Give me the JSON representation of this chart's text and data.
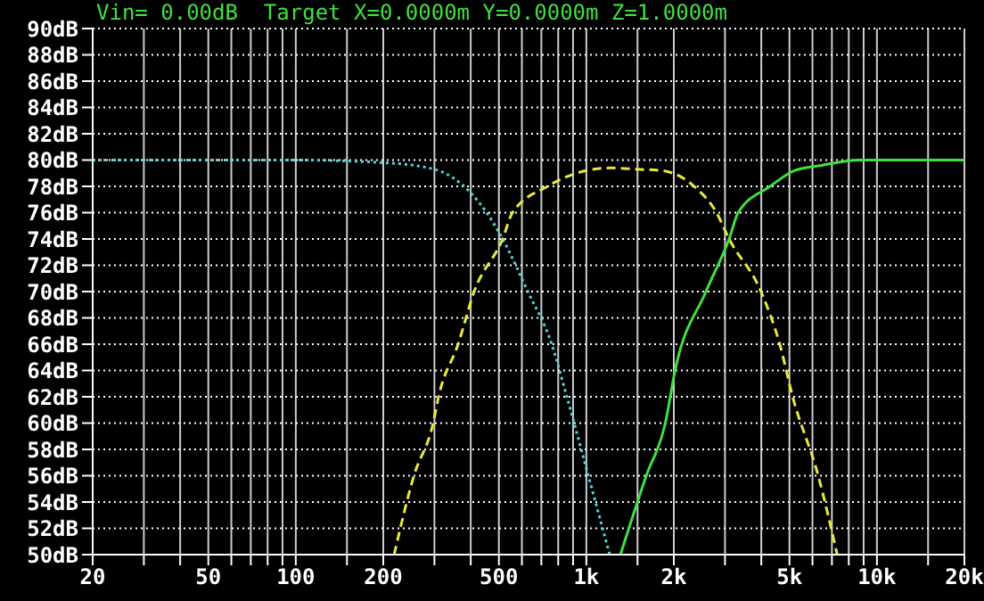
{
  "chart_data": {
    "type": "line",
    "title": "Vin= 0.00dB  Target X=0.0000m Y=0.0000m Z=1.0000m",
    "log": "x",
    "grid": true,
    "marker": "none",
    "xlim": [
      20,
      20000
    ],
    "xticks": [
      20,
      {
        "value": 30,
        "label": null
      },
      {
        "value": 40,
        "label": null
      },
      50,
      {
        "value": 60,
        "label": null
      },
      {
        "value": 70,
        "label": null
      },
      {
        "value": 80,
        "label": null
      },
      {
        "value": 90,
        "label": null
      },
      100,
      {
        "value": 150,
        "label": null
      },
      200,
      {
        "value": 300,
        "label": null
      },
      {
        "value": 400,
        "label": null
      },
      500,
      {
        "value": 600,
        "label": null
      },
      {
        "value": 700,
        "label": null
      },
      {
        "value": 800,
        "label": null
      },
      {
        "value": 900,
        "label": null
      },
      {
        "value": 1000,
        "label": "1k"
      },
      {
        "value": 1500,
        "label": null
      },
      {
        "value": 2000,
        "label": "2k"
      },
      {
        "value": 3000,
        "label": null
      },
      {
        "value": 4000,
        "label": null
      },
      {
        "value": 5000,
        "label": "5k"
      },
      {
        "value": 6000,
        "label": null
      },
      {
        "value": 7000,
        "label": null
      },
      {
        "value": 8000,
        "label": null
      },
      {
        "value": 9000,
        "label": null
      },
      {
        "value": 10000,
        "label": "10k"
      },
      {
        "value": 15000,
        "label": null
      },
      {
        "value": 20000,
        "label": "20k"
      }
    ],
    "ylim": [
      50,
      90
    ],
    "yticks": [
      {
        "value": 50,
        "label": "50dB"
      },
      {
        "value": 52,
        "label": "52dB"
      },
      {
        "value": 54,
        "label": "54dB"
      },
      {
        "value": 56,
        "label": "56dB"
      },
      {
        "value": 58,
        "label": "58dB"
      },
      {
        "value": 60,
        "label": "60dB"
      },
      {
        "value": 62,
        "label": "62dB"
      },
      {
        "value": 64,
        "label": "64dB"
      },
      {
        "value": 66,
        "label": "66dB"
      },
      {
        "value": 68,
        "label": "68dB"
      },
      {
        "value": 70,
        "label": "70dB"
      },
      {
        "value": 72,
        "label": "72dB"
      },
      {
        "value": 74,
        "label": "74dB"
      },
      {
        "value": 76,
        "label": "76dB"
      },
      {
        "value": 78,
        "label": "78dB"
      },
      {
        "value": 80,
        "label": "80dB"
      },
      {
        "value": 82,
        "label": "82dB"
      },
      {
        "value": 84,
        "label": "84dB"
      },
      {
        "value": 86,
        "label": "86dB"
      },
      {
        "value": 88,
        "label": "88dB"
      },
      {
        "value": 90,
        "label": "90dB"
      }
    ],
    "series": [
      {
        "color": "#50d8d8",
        "line_style": "dotted",
        "x": [
          20,
          100,
          200,
          300,
          400,
          454,
          515,
          629,
          760,
          857,
          1016,
          1203
        ],
        "values": [
          80,
          80,
          79.8,
          79.3,
          77.5,
          76,
          74,
          70,
          66,
          62,
          56,
          50
        ]
      },
      {
        "color": "#e8e840",
        "line_style": "dashed",
        "x": [
          218,
          255,
          297,
          310,
          362,
          411,
          515,
          557,
          735,
          1000,
          1220,
          1500,
          1815,
          2350,
          2805,
          3100,
          3990,
          4630,
          5130,
          6280,
          7300
        ],
        "values": [
          50,
          56,
          60,
          62,
          66,
          70,
          74,
          76,
          78,
          79.2,
          79.4,
          79.3,
          79.2,
          78,
          76,
          74,
          70,
          66,
          62,
          56,
          50
        ]
      },
      {
        "color": "#40e040",
        "line_style": "solid",
        "x": [
          1310,
          1608,
          1870,
          2020,
          2580,
          3100,
          3330,
          4290,
          5200,
          6460,
          8700,
          20000
        ],
        "values": [
          50,
          56,
          60,
          64,
          70,
          74,
          76,
          78,
          79.2,
          79.6,
          80,
          80
        ]
      }
    ]
  }
}
